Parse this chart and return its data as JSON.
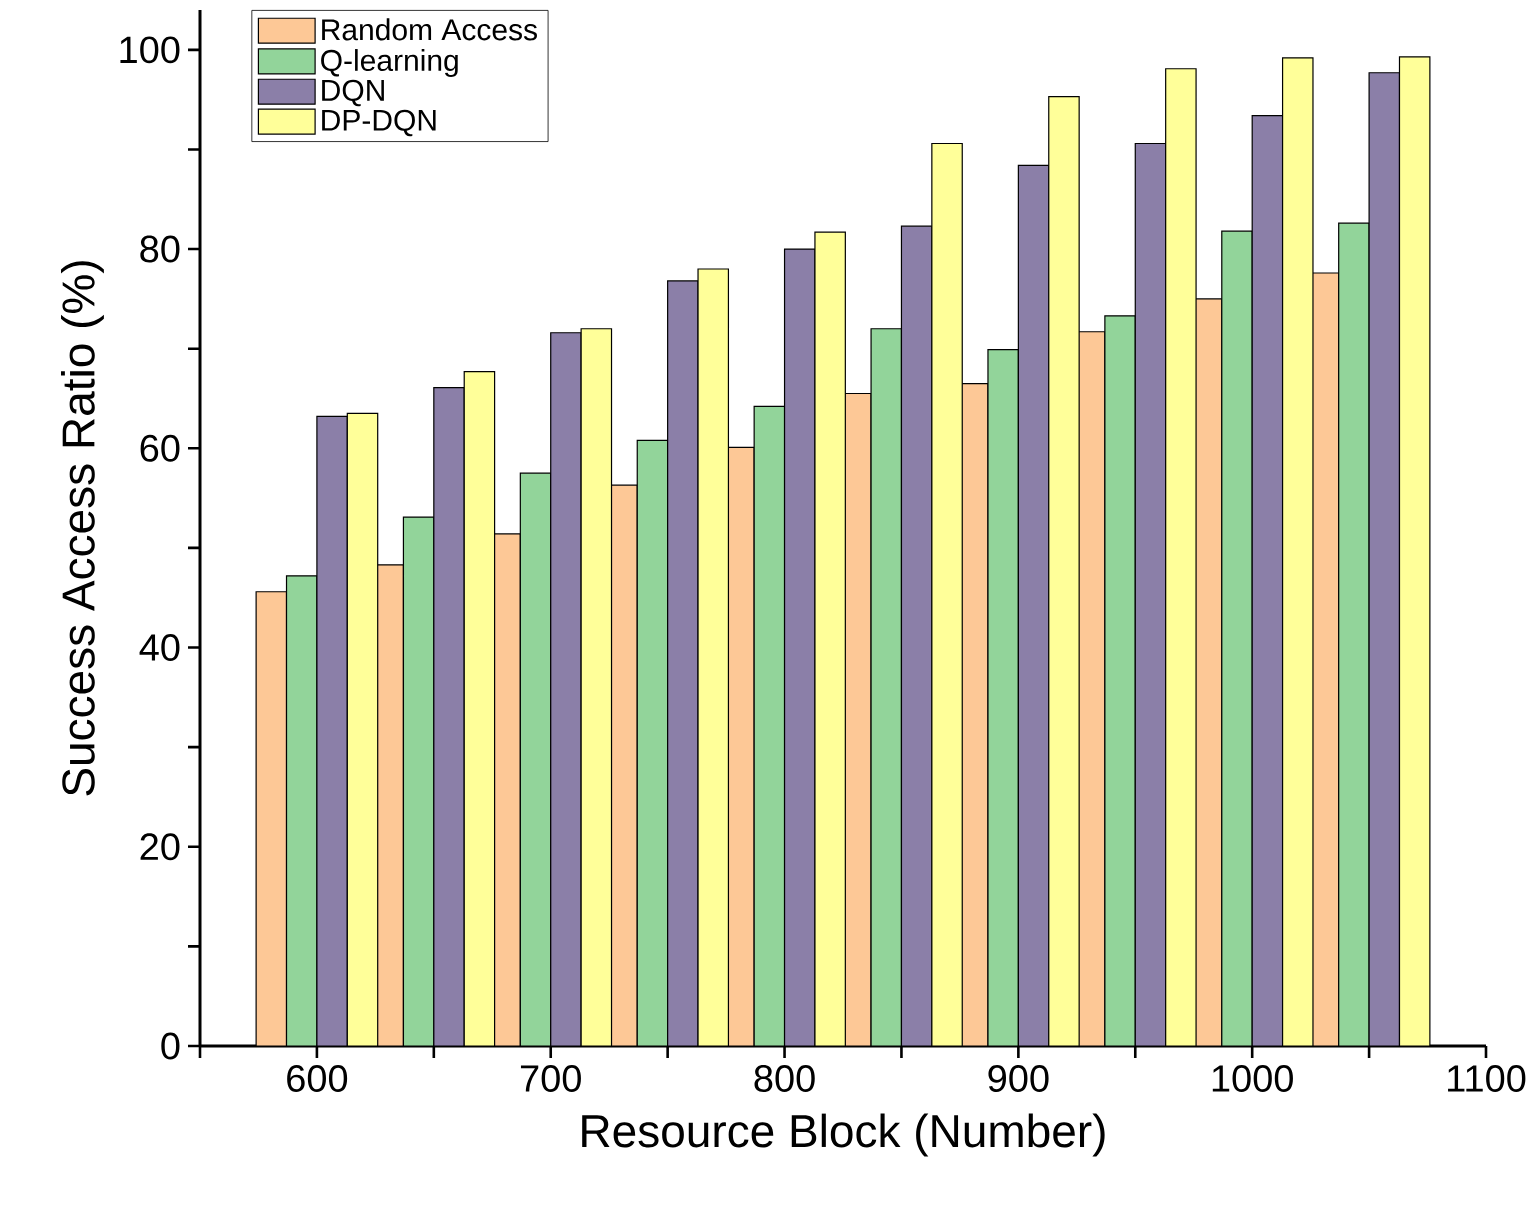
{
  "chart_data": {
    "type": "bar",
    "xlabel": "Resource Block (Number)",
    "ylabel": "Success Access Ratio (%)",
    "x": [
      600,
      650,
      700,
      750,
      800,
      850,
      900,
      950,
      1000,
      1050
    ],
    "series": [
      {
        "name": "Random Access",
        "color": "#fdc896",
        "values": [
          45.6,
          48.3,
          51.4,
          56.3,
          60.1,
          65.5,
          66.5,
          71.7,
          75.0,
          77.6
        ]
      },
      {
        "name": "Q-learning",
        "color": "#92d49a",
        "values": [
          47.2,
          53.1,
          57.5,
          60.8,
          64.2,
          72.0,
          69.9,
          73.3,
          81.8,
          82.6
        ]
      },
      {
        "name": "DQN",
        "color": "#8b7fa8",
        "values": [
          63.2,
          66.1,
          71.6,
          76.8,
          80.0,
          82.3,
          88.4,
          90.6,
          93.4,
          97.7
        ]
      },
      {
        "name": "DP-DQN",
        "color": "#ffff99",
        "values": [
          63.5,
          67.7,
          72.0,
          78.0,
          81.7,
          90.6,
          95.3,
          98.1,
          99.2,
          99.3
        ]
      }
    ],
    "xlim": [
      550,
      1100
    ],
    "xticks": [
      {
        "value": 550,
        "label": null
      },
      600,
      {
        "value": 650,
        "label": null
      },
      700,
      {
        "value": 750,
        "label": null
      },
      800,
      {
        "value": 850,
        "label": null
      },
      900,
      {
        "value": 950,
        "label": null
      },
      1000,
      {
        "value": 1050,
        "label": null
      },
      1100
    ],
    "ylim": [
      0,
      104
    ],
    "yticks": [
      0,
      {
        "value": 10,
        "label": null
      },
      20,
      {
        "value": 30,
        "label": null
      },
      40,
      {
        "value": 50,
        "label": null
      },
      60,
      {
        "value": 70,
        "label": null
      },
      80,
      {
        "value": 90,
        "label": null
      },
      100
    ],
    "grid": false,
    "legend": "top left"
  }
}
